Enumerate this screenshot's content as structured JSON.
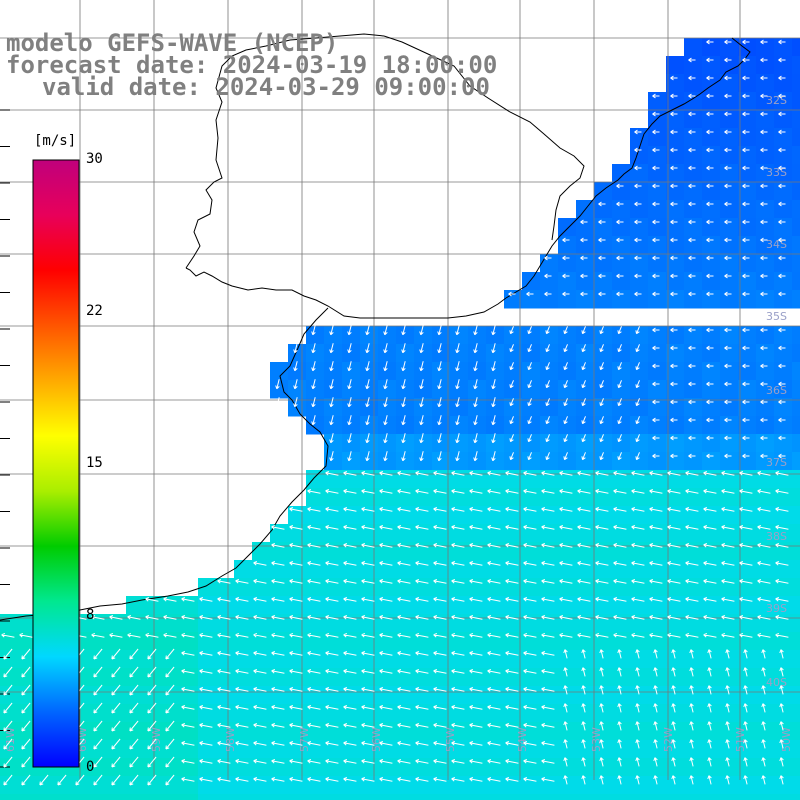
{
  "title": {
    "model": "modelo GEFS-WAVE (NCEP)",
    "forecast": "forecast date: 2024-03-19 18:00:00",
    "valid": "valid date: 2024-03-29 09:00:00"
  },
  "colorbar": {
    "unit": "[m/s]",
    "ticks": [
      "30",
      "22",
      "15",
      "8",
      "0"
    ],
    "range": [
      0,
      30
    ],
    "colors": [
      "#0000ff",
      "#0066ff",
      "#00d8ff",
      "#00e890",
      "#00cc00",
      "#aaee00",
      "#ffff00",
      "#ffaa00",
      "#ff5500",
      "#ff0000",
      "#e8005a",
      "#c0007c"
    ]
  },
  "grid_labels": {
    "latitudes": [
      "32S",
      "33S",
      "34S",
      "35S",
      "36S",
      "37S",
      "38S",
      "39S",
      "40S"
    ],
    "longitudes": [
      "61W",
      "60W",
      "59W",
      "58W",
      "57W",
      "56W",
      "55W",
      "54W",
      "53W",
      "52W",
      "51W",
      "50W"
    ]
  },
  "field": {
    "variable": "wind speed",
    "typical_speed_ms": {
      "estuary": 3,
      "north_shelf": 4,
      "south_shelf": 7
    },
    "land_color": "#ffffff"
  }
}
